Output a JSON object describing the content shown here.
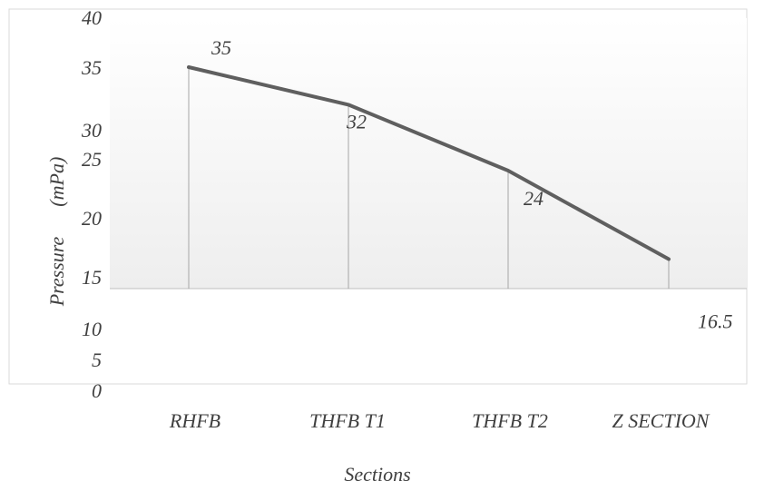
{
  "chart_data": {
    "type": "line",
    "xlabel": "Sections",
    "ylabel": "Pressure      (mPa)",
    "y_ticks": [
      "0",
      "5",
      "10",
      "15",
      "20",
      "25",
      "30",
      "35",
      "40"
    ],
    "categories": [
      "RHFB",
      "THFB T1",
      "THFB T2",
      "Z SECTION"
    ],
    "series": [
      {
        "values": [
          35,
          32,
          24,
          16.5
        ],
        "data_labels": [
          "35",
          "32",
          "24",
          "16.5"
        ]
      }
    ],
    "colors": {
      "line": "#5f5f5f",
      "drop_lines": "#a6a6a6",
      "border": "#d9d9d9",
      "gradient_top": "#ffffff",
      "gradient_bottom": "#eeeeee"
    },
    "legend": "none",
    "grid": false
  }
}
